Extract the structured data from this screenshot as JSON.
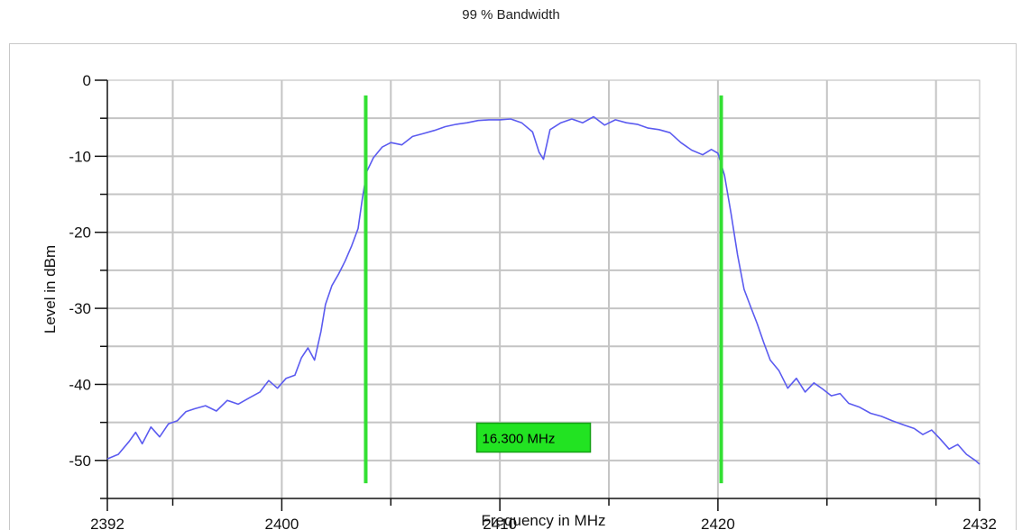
{
  "title": "99 % Bandwidth",
  "chart_data": {
    "type": "line",
    "title": "99 % Bandwidth",
    "xlabel": "Frequency in MHz",
    "ylabel": "Level in dBm",
    "xlim": [
      2392,
      2432
    ],
    "ylim": [
      -55,
      0
    ],
    "x_ticks": [
      2392,
      2400,
      2410,
      2420,
      2432
    ],
    "x_tick_labels": [
      "2392",
      "2400",
      "2410",
      "2420",
      "2432"
    ],
    "y_ticks": [
      0,
      -10,
      -20,
      -30,
      -40,
      -50
    ],
    "y_tick_labels": [
      "0",
      "-10",
      "-20",
      "-30",
      "-40",
      "-50"
    ],
    "grid": true,
    "series": [
      {
        "color": "#5b5bf0",
        "x": [
          2392.0,
          2392.5,
          2393.0,
          2393.3,
          2393.6,
          2394.0,
          2394.4,
          2394.8,
          2395.2,
          2395.6,
          2396.0,
          2396.5,
          2397.0,
          2397.5,
          2398.0,
          2398.5,
          2399.0,
          2399.4,
          2399.8,
          2400.2,
          2400.6,
          2400.9,
          2401.2,
          2401.5,
          2401.8,
          2402.0,
          2402.3,
          2402.6,
          2402.9,
          2403.2,
          2403.5,
          2403.7,
          2403.9,
          2404.2,
          2404.6,
          2405.0,
          2405.5,
          2406.0,
          2406.5,
          2407.0,
          2407.5,
          2408.0,
          2408.5,
          2409.0,
          2409.5,
          2410.0,
          2410.5,
          2411.0,
          2411.5,
          2411.8,
          2412.0,
          2412.3,
          2412.8,
          2413.3,
          2413.8,
          2414.3,
          2414.8,
          2415.3,
          2415.8,
          2416.3,
          2416.8,
          2417.3,
          2417.8,
          2418.3,
          2418.8,
          2419.3,
          2419.7,
          2420.0,
          2420.3,
          2420.6,
          2420.9,
          2421.2,
          2421.5,
          2421.8,
          2422.1,
          2422.4,
          2422.8,
          2423.2,
          2423.6,
          2424.0,
          2424.4,
          2424.8,
          2425.2,
          2425.6,
          2426.0,
          2426.5,
          2427.0,
          2427.5,
          2428.0,
          2428.5,
          2429.0,
          2429.4,
          2429.8,
          2430.2,
          2430.6,
          2431.0,
          2431.4,
          2431.8,
          2432.0
        ],
        "y": [
          -49.8,
          -49.2,
          -47.5,
          -46.3,
          -47.8,
          -45.6,
          -46.9,
          -45.2,
          -44.8,
          -43.6,
          -43.2,
          -42.8,
          -43.5,
          -42.1,
          -42.6,
          -41.8,
          -41.0,
          -39.5,
          -40.5,
          -39.2,
          -38.8,
          -36.5,
          -35.2,
          -36.8,
          -33.0,
          -29.5,
          -27.0,
          -25.5,
          -23.8,
          -21.8,
          -19.5,
          -15.5,
          -12.0,
          -10.2,
          -8.8,
          -8.2,
          -8.5,
          -7.4,
          -7.0,
          -6.6,
          -6.1,
          -5.8,
          -5.6,
          -5.3,
          -5.2,
          -5.2,
          -5.1,
          -5.6,
          -6.8,
          -9.5,
          -10.4,
          -6.5,
          -5.6,
          -5.1,
          -5.6,
          -4.8,
          -5.9,
          -5.2,
          -5.6,
          -5.8,
          -6.3,
          -6.5,
          -6.9,
          -8.2,
          -9.2,
          -9.8,
          -9.1,
          -9.6,
          -12.5,
          -17.5,
          -23.0,
          -27.5,
          -29.8,
          -32.0,
          -34.5,
          -36.8,
          -38.2,
          -40.5,
          -39.2,
          -41.0,
          -39.8,
          -40.6,
          -41.5,
          -41.2,
          -42.5,
          -43.0,
          -43.8,
          -44.2,
          -44.8,
          -45.3,
          -45.8,
          -46.6,
          -46.0,
          -47.2,
          -48.5,
          -47.9,
          -49.2,
          -50.0,
          -50.5
        ]
      }
    ],
    "bandwidth_markers": {
      "color": "#33e033",
      "lower_mhz": 2403.85,
      "upper_mhz": 2420.15,
      "top_dbm": -2,
      "bottom_dbm": -53,
      "label": "16.300 MHz",
      "label_x_mhz": 2412.0,
      "label_y_dbm": -47.0
    }
  }
}
